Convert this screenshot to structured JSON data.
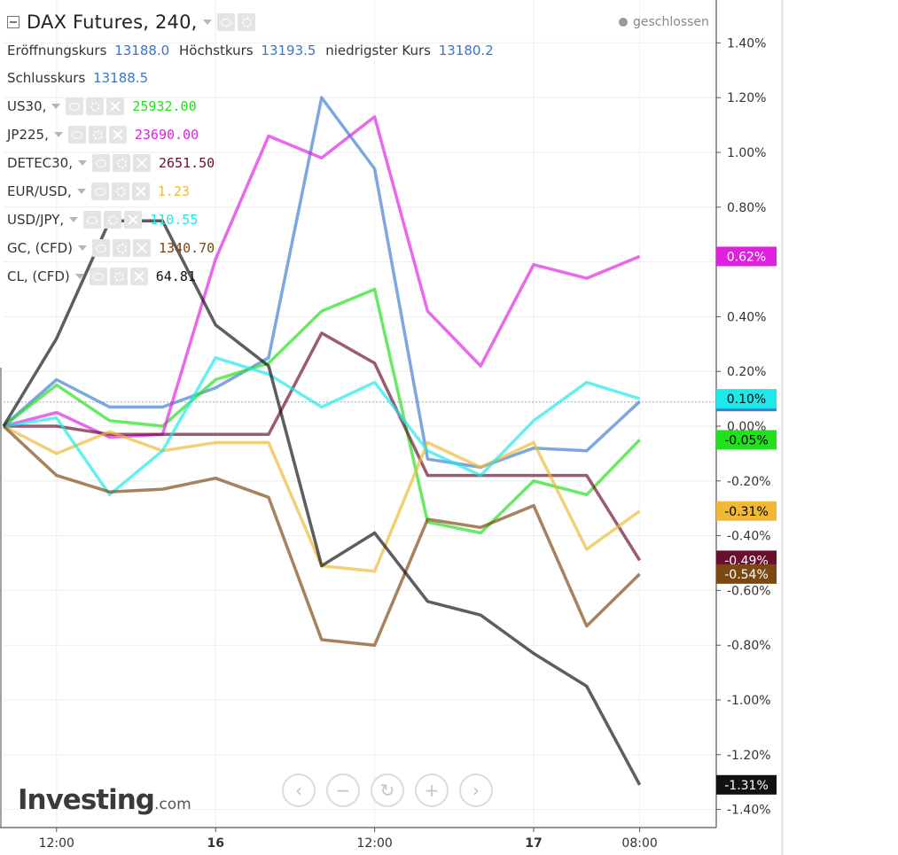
{
  "header": {
    "title": "DAX Futures, 240,",
    "status": "geschlossen"
  },
  "ohlc": {
    "open_label": "Eröffnungskurs",
    "open_value": "13188.0",
    "high_label": "Höchstkurs",
    "high_value": "13193.5",
    "low_label": "niedrigster Kurs",
    "low_value": "13180.2",
    "close_label": "Schlusskurs",
    "close_value": "13188.5"
  },
  "symbols": [
    {
      "name": "US30,",
      "value": "25932.00",
      "color": "#22e01e"
    },
    {
      "name": "JP225,",
      "value": "23690.00",
      "color": "#e020e0"
    },
    {
      "name": "DETEC30,",
      "value": "2651.50",
      "color": "#6b0f2e"
    },
    {
      "name": "EUR/USD,",
      "value": "1.23",
      "color": "#f0b836"
    },
    {
      "name": "USD/JPY,",
      "value": "110.55",
      "color": "#1ee8ea"
    },
    {
      "name": "GC, (CFD)",
      "value": "1340.70",
      "color": "#7a4810"
    },
    {
      "name": "CL, (CFD)",
      "value": "64.81",
      "color": "#111111"
    }
  ],
  "logo": {
    "brand": "Investing",
    "suffix": ".com"
  },
  "nav": [
    {
      "name": "scroll-left-button",
      "glyph": "‹"
    },
    {
      "name": "zoom-out-button",
      "glyph": "−"
    },
    {
      "name": "reset-button",
      "glyph": "↻"
    },
    {
      "name": "zoom-in-button",
      "glyph": "+"
    },
    {
      "name": "scroll-right-button",
      "glyph": "›"
    }
  ],
  "chart_data": {
    "type": "line",
    "x": [
      0,
      1,
      2,
      3,
      4,
      5,
      6,
      7,
      8,
      9,
      10,
      11,
      12
    ],
    "x_tick_labels": [
      {
        "x": 1,
        "label": "12:00",
        "bold": false
      },
      {
        "x": 4,
        "label": "16",
        "bold": true
      },
      {
        "x": 7,
        "label": "12:00",
        "bold": false
      },
      {
        "x": 10,
        "label": "17",
        "bold": true
      },
      {
        "x": 12,
        "label": "08:00",
        "bold": false
      }
    ],
    "y_unit": "%",
    "ylim": [
      -1.45,
      1.48
    ],
    "y_ticks": [
      1.4,
      1.2,
      1.0,
      0.8,
      0.6,
      0.4,
      0.2,
      0.0,
      -0.2,
      -0.4,
      -0.6,
      -0.8,
      -1.0,
      -1.2,
      -1.4
    ],
    "y_tick_labels": [
      "1.40%",
      "1.20%",
      "1.00%",
      "0.80%",
      "0.60%",
      "0.40%",
      "0.20%",
      "0.00%",
      "-0.20%",
      "-0.40%",
      "-0.60%",
      "-0.80%",
      "-1.00%",
      "-1.20%",
      "-1.40%"
    ],
    "grid": true,
    "series": [
      {
        "name": "DAX Futures",
        "color": "#3f7ed0",
        "values": [
          0,
          0.17,
          0.07,
          0.07,
          0.14,
          0.25,
          1.2,
          0.94,
          -0.12,
          -0.15,
          -0.08,
          -0.09,
          0.09
        ],
        "end_label": "0.09%",
        "end_label_color": "#3f7ed0"
      },
      {
        "name": "US30",
        "color": "#22e01e",
        "values": [
          0,
          0.15,
          0.02,
          0.0,
          0.17,
          0.23,
          0.42,
          0.5,
          -0.35,
          -0.39,
          -0.2,
          -0.25,
          -0.05
        ],
        "end_label": "-0.05%",
        "end_label_color": "#22e01e"
      },
      {
        "name": "JP225",
        "color": "#e020e0",
        "values": [
          0,
          0.05,
          -0.04,
          -0.03,
          0.61,
          1.06,
          0.98,
          1.13,
          0.42,
          0.22,
          0.59,
          0.54,
          0.62
        ],
        "end_label": "0.62%",
        "end_label_color": "#e020e0"
      },
      {
        "name": "DETEC30",
        "color": "#6b0f2e",
        "values": [
          0,
          0.0,
          -0.03,
          -0.03,
          -0.03,
          -0.03,
          0.34,
          0.23,
          -0.18,
          -0.18,
          -0.18,
          -0.18,
          -0.49
        ],
        "end_label": "-0.49%",
        "end_label_color": "#6b0f2e"
      },
      {
        "name": "EUR/USD",
        "color": "#f0b836",
        "values": [
          0,
          -0.1,
          -0.02,
          -0.09,
          -0.06,
          -0.06,
          -0.51,
          -0.53,
          -0.06,
          -0.15,
          -0.06,
          -0.45,
          -0.31
        ],
        "end_label": "-0.31%",
        "end_label_color": "#f0b836"
      },
      {
        "name": "USD/JPY",
        "color": "#1ee8ea",
        "values": [
          0,
          0.03,
          -0.25,
          -0.09,
          0.25,
          0.19,
          0.07,
          0.16,
          -0.09,
          -0.18,
          0.02,
          0.16,
          0.1
        ],
        "end_label": "0.10%",
        "end_label_color": "#1ee8ea"
      },
      {
        "name": "GC (CFD)",
        "color": "#7a4810",
        "values": [
          0,
          -0.18,
          -0.24,
          -0.23,
          -0.19,
          -0.26,
          -0.78,
          -0.8,
          -0.34,
          -0.37,
          -0.29,
          -0.73,
          -0.54
        ],
        "end_label": "-0.54%",
        "end_label_color": "#7a4810"
      },
      {
        "name": "CL (CFD)",
        "color": "#111111",
        "values": [
          0,
          0.32,
          0.75,
          0.75,
          0.37,
          0.22,
          -0.51,
          -0.39,
          -0.64,
          -0.69,
          -0.83,
          -0.95,
          -1.31
        ],
        "end_label": "-1.31%",
        "end_label_color": "#111111"
      }
    ]
  }
}
